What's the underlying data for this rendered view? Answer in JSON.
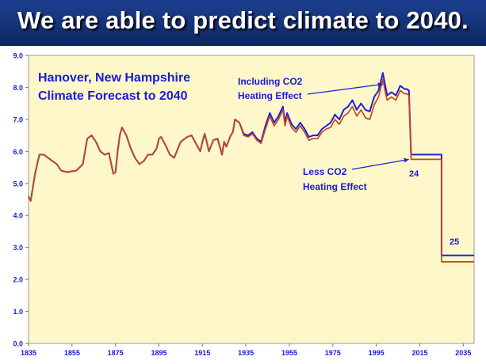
{
  "banner": {
    "title": "We are able to predict climate to 2040."
  },
  "colors": {
    "banner_bg": "#16357c",
    "plot_bg": "#fdf7c9",
    "plot_border": "#9a9a9a",
    "including_co2_line": "#1f1fd8",
    "less_co2_line": "#c8481e",
    "text_blue": "#1a1adc"
  },
  "chart_data": {
    "type": "line",
    "title": [
      "Hanover, New Hampshire",
      "Climate Forecast to 2040"
    ],
    "xlabel": "",
    "ylabel": "",
    "xlim": [
      1835,
      2040
    ],
    "ylim": [
      0,
      9
    ],
    "x_tick_labels": [
      "1835",
      "1855",
      "1875",
      "1895",
      "1915",
      "1935",
      "1955",
      "1975",
      "1995",
      "2015",
      "2035"
    ],
    "y_tick_labels": [
      "0.0",
      "1.0",
      "2.0",
      "3.0",
      "4.0",
      "5.0",
      "6.0",
      "7.0",
      "8.0",
      "9.0"
    ],
    "grid": false,
    "series": [
      {
        "name": "Including CO2 Heating Effect",
        "color": "#1f1fd8",
        "x": [
          1835,
          1836,
          1838,
          1840,
          1842,
          1845,
          1848,
          1850,
          1853,
          1855,
          1857,
          1860,
          1862,
          1864,
          1866,
          1868,
          1870,
          1872,
          1874,
          1875,
          1876,
          1877,
          1878,
          1880,
          1882,
          1884,
          1886,
          1888,
          1890,
          1892,
          1894,
          1895,
          1896,
          1898,
          1900,
          1902,
          1905,
          1908,
          1910,
          1912,
          1914,
          1915,
          1916,
          1917,
          1918,
          1920,
          1922,
          1924,
          1925,
          1926,
          1928,
          1929,
          1930,
          1932,
          1934,
          1936,
          1938,
          1940,
          1942,
          1944,
          1946,
          1948,
          1950,
          1952,
          1953,
          1954,
          1956,
          1958,
          1960,
          1962,
          1964,
          1966,
          1968,
          1970,
          1972,
          1974,
          1976,
          1978,
          1980,
          1982,
          1984,
          1986,
          1988,
          1990,
          1992,
          1994,
          1996,
          1998,
          1999,
          2000,
          2002,
          2004,
          2006,
          2008,
          2009,
          2010,
          2011,
          2011.001,
          2025,
          2025.001,
          2040
        ],
        "values": [
          4.6,
          4.45,
          5.3,
          5.9,
          5.9,
          5.75,
          5.6,
          5.4,
          5.35,
          5.38,
          5.4,
          5.6,
          6.4,
          6.5,
          6.3,
          6.0,
          5.9,
          5.95,
          5.3,
          5.35,
          6.0,
          6.5,
          6.75,
          6.5,
          6.1,
          5.8,
          5.6,
          5.7,
          5.9,
          5.9,
          6.1,
          6.4,
          6.45,
          6.2,
          5.9,
          5.8,
          6.3,
          6.45,
          6.5,
          6.25,
          6.0,
          6.3,
          6.55,
          6.3,
          6.0,
          6.35,
          6.4,
          5.9,
          6.3,
          6.15,
          6.5,
          6.6,
          7.0,
          6.9,
          6.55,
          6.5,
          6.6,
          6.4,
          6.3,
          6.8,
          7.2,
          6.9,
          7.1,
          7.4,
          6.9,
          7.2,
          6.85,
          6.7,
          6.9,
          6.7,
          6.45,
          6.5,
          6.5,
          6.7,
          6.8,
          6.9,
          7.15,
          7.0,
          7.3,
          7.4,
          7.6,
          7.3,
          7.5,
          7.3,
          7.25,
          7.7,
          7.9,
          8.45,
          8.1,
          7.75,
          7.85,
          7.75,
          8.05,
          7.95,
          7.95,
          7.9,
          5.9,
          5.9,
          5.9,
          2.75,
          2.75
        ]
      },
      {
        "name": "Less CO2 Heating Effect",
        "color": "#c8481e",
        "x": [
          1835,
          1836,
          1838,
          1840,
          1842,
          1845,
          1848,
          1850,
          1853,
          1855,
          1857,
          1860,
          1862,
          1864,
          1866,
          1868,
          1870,
          1872,
          1874,
          1875,
          1876,
          1877,
          1878,
          1880,
          1882,
          1884,
          1886,
          1888,
          1890,
          1892,
          1894,
          1895,
          1896,
          1898,
          1900,
          1902,
          1905,
          1908,
          1910,
          1912,
          1914,
          1915,
          1916,
          1917,
          1918,
          1920,
          1922,
          1924,
          1925,
          1926,
          1928,
          1929,
          1930,
          1932,
          1934,
          1936,
          1938,
          1940,
          1942,
          1944,
          1946,
          1948,
          1950,
          1952,
          1953,
          1954,
          1956,
          1958,
          1960,
          1962,
          1964,
          1966,
          1968,
          1970,
          1972,
          1974,
          1976,
          1978,
          1980,
          1982,
          1984,
          1986,
          1988,
          1990,
          1992,
          1994,
          1996,
          1998,
          1999,
          2000,
          2002,
          2004,
          2006,
          2008,
          2009,
          2010,
          2011,
          2011.001,
          2025,
          2025.001,
          2040
        ],
        "values": [
          4.6,
          4.45,
          5.3,
          5.9,
          5.9,
          5.75,
          5.6,
          5.4,
          5.35,
          5.38,
          5.4,
          5.6,
          6.4,
          6.5,
          6.3,
          6.0,
          5.9,
          5.95,
          5.3,
          5.35,
          6.0,
          6.5,
          6.75,
          6.5,
          6.1,
          5.8,
          5.6,
          5.7,
          5.9,
          5.9,
          6.1,
          6.4,
          6.45,
          6.2,
          5.9,
          5.8,
          6.3,
          6.45,
          6.5,
          6.25,
          6.0,
          6.3,
          6.55,
          6.3,
          6.0,
          6.35,
          6.4,
          5.9,
          6.3,
          6.15,
          6.5,
          6.6,
          7.0,
          6.9,
          6.5,
          6.45,
          6.55,
          6.35,
          6.25,
          6.7,
          7.1,
          6.8,
          7.0,
          7.3,
          6.8,
          7.1,
          6.75,
          6.6,
          6.8,
          6.6,
          6.35,
          6.4,
          6.4,
          6.6,
          6.7,
          6.75,
          7.0,
          6.85,
          7.1,
          7.2,
          7.4,
          7.1,
          7.3,
          7.05,
          7.0,
          7.45,
          7.7,
          8.25,
          7.9,
          7.6,
          7.7,
          7.6,
          7.9,
          7.8,
          7.8,
          7.75,
          5.75,
          5.75,
          5.75,
          2.55,
          2.55
        ]
      }
    ],
    "annotations": [
      {
        "lines": [
          "Including CO2",
          "Heating Effect"
        ],
        "points_to_year": 1998,
        "points_to_value": 8.1
      },
      {
        "lines": [
          "Less CO2",
          "Heating Effect"
        ],
        "points_to_year": 2010,
        "points_to_value": 5.75
      },
      {
        "text": "24"
      },
      {
        "text": "25"
      }
    ]
  }
}
